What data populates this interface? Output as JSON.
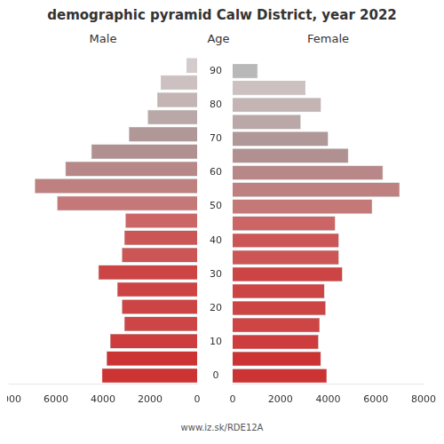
{
  "chart_data": {
    "type": "bar",
    "orientation": "horizontal",
    "title": "demographic pyramid Calw District, year 2022",
    "ylabel": "Age",
    "annotations": [
      "www.iz.sk/RDE12A"
    ],
    "categories": [
      "0",
      null,
      "10",
      null,
      "20",
      null,
      "30",
      null,
      "40",
      null,
      "50",
      null,
      "60",
      null,
      "70",
      null,
      "80",
      null,
      "90"
    ],
    "series": [
      {
        "name": "Male",
        "colors": [
          "#cc3333",
          "#cc3333",
          "#cd3d3d",
          "#cd4545",
          "#cc4444",
          "#cc4444",
          "#cc4444",
          "#cc5555",
          "#cc5555",
          "#cc6666",
          "#c47878",
          "#bf8080",
          "#b88888",
          "#b09090",
          "#b09898",
          "#baa8a8",
          "#c4b4b4",
          "#ccc0c0",
          "#d4cccc"
        ],
        "values": [
          4050,
          3850,
          3700,
          3100,
          3200,
          3400,
          4200,
          3200,
          3100,
          3050,
          5950,
          6900,
          5600,
          4500,
          2900,
          2100,
          1700,
          1550,
          450
        ]
      },
      {
        "name": "Female",
        "colors": [
          "#cc3333",
          "#cc3333",
          "#cd3d3d",
          "#cd4545",
          "#cc4444",
          "#cc4444",
          "#cc4444",
          "#cc5555",
          "#cc5555",
          "#cc6666",
          "#c47878",
          "#bf8080",
          "#b88888",
          "#b09090",
          "#b09898",
          "#baa8a8",
          "#c4b4b4",
          "#ccc0c0",
          "#b8b8b8"
        ],
        "values": [
          3950,
          3700,
          3600,
          3650,
          3900,
          3850,
          4600,
          4450,
          4450,
          4300,
          5850,
          7000,
          6300,
          4850,
          4000,
          2850,
          3700,
          3050,
          1050
        ]
      }
    ],
    "xlim": [
      0,
      8000
    ],
    "xticks": [
      0,
      2000,
      4000,
      6000,
      8000
    ],
    "grid": false
  }
}
